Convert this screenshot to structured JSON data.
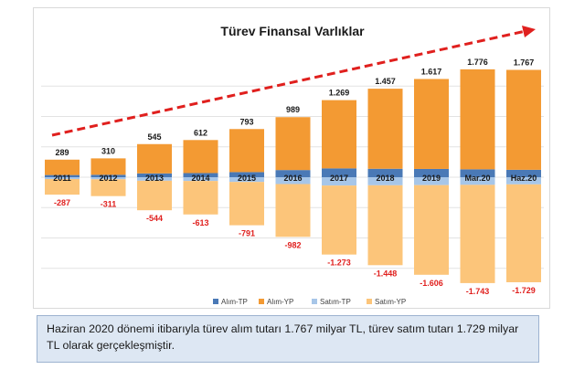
{
  "chart_data": {
    "type": "bar",
    "title": "Türev Finansal Varlıklar",
    "categories": [
      "2011",
      "2012",
      "2013",
      "2014",
      "2015",
      "2016",
      "2017",
      "2018",
      "2019",
      "Mar.20",
      "Haz.20"
    ],
    "series": [
      {
        "name": "Alım-TP",
        "values": [
          36,
          40,
          63,
          68,
          84,
          118,
          145,
          139,
          136,
          130,
          122
        ]
      },
      {
        "name": "Alım-YP",
        "values": [
          253,
          270,
          482,
          544,
          709,
          871,
          1124,
          1318,
          1481,
          1646,
          1645
        ]
      },
      {
        "name": "Satım-TP",
        "values": [
          -30,
          -34,
          -58,
          -62,
          -78,
          -113,
          -137,
          -133,
          -130,
          -126,
          -118
        ]
      },
      {
        "name": "Satım-YP",
        "values": [
          -257,
          -277,
          -486,
          -551,
          -713,
          -869,
          -1136,
          -1315,
          -1476,
          -1617,
          -1611
        ]
      }
    ],
    "totals_buy_labels": [
      "289",
      "310",
      "545",
      "612",
      "793",
      "989",
      "1.269",
      "1.457",
      "1.617",
      "1.776",
      "1.767"
    ],
    "totals_sell_labels": [
      "-287",
      "-311",
      "-544",
      "-613",
      "-791",
      "-982",
      "-1.273",
      "-1.448",
      "-1.606",
      "-1.743",
      "-1.729"
    ],
    "totals_buy": [
      289,
      310,
      545,
      612,
      793,
      989,
      1269,
      1457,
      1617,
      1776,
      1767
    ],
    "totals_sell": [
      -287,
      -311,
      -544,
      -613,
      -791,
      -982,
      -1273,
      -1448,
      -1606,
      -1743,
      -1729
    ],
    "ylim": [
      -2000,
      2000
    ],
    "grid": true,
    "trend_arrow": true,
    "legend_position": "bottom",
    "colors": {
      "Alım-TP": "#4a79b6",
      "Alım-YP": "#f39a33",
      "Satım-TP": "#a7c6e8",
      "Satım-YP": "#fcc57a",
      "buy_label": "#1a1a1a",
      "sell_label": "#e0201e",
      "arrow": "#e0201e"
    }
  },
  "caption": "Haziran 2020 dönemi itibarıyla türev alım tutarı 1.767 milyar TL, türev satım tutarı 1.729 milyar TL olarak gerçekleşmiştir."
}
